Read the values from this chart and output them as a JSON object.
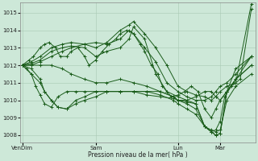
{
  "xlabel": "Pression niveau de la mer( hPa )",
  "yticks": [
    1008,
    1009,
    1010,
    1011,
    1012,
    1013,
    1014,
    1015
  ],
  "xtick_labels": [
    "VenDim",
    "Sam",
    "Lun",
    "Mar"
  ],
  "xtick_positions": [
    0.0,
    0.33,
    0.7,
    0.89
  ],
  "xmax": 1.05,
  "ymin": 1007.6,
  "ymax": 1015.6,
  "bg_color": "#cde8d8",
  "grid_color": "#a8c8b4",
  "line_color": "#1a5c1a",
  "lines": [
    {
      "x": [
        0.0,
        0.02,
        0.04,
        0.06,
        0.08,
        0.1,
        0.13,
        0.16,
        0.2,
        0.24,
        0.28,
        0.33,
        0.38,
        0.44,
        0.5,
        0.56,
        0.62,
        0.68,
        0.7,
        0.74,
        0.78,
        0.82,
        0.85,
        0.87,
        0.89,
        0.91,
        0.94,
        0.98,
        1.03
      ],
      "y": [
        1012.0,
        1011.8,
        1011.5,
        1010.8,
        1010.3,
        1009.8,
        1009.6,
        1010.2,
        1010.5,
        1010.5,
        1010.5,
        1010.5,
        1010.5,
        1010.5,
        1010.5,
        1010.3,
        1010.2,
        1010.1,
        1010.0,
        1009.9,
        1009.8,
        1008.5,
        1008.2,
        1008.3,
        1008.8,
        1010.2,
        1010.8,
        1011.2,
        1015.2
      ]
    },
    {
      "x": [
        0.0,
        0.04,
        0.08,
        0.13,
        0.18,
        0.22,
        0.28,
        0.33,
        0.38,
        0.44,
        0.48,
        0.5,
        0.55,
        0.6,
        0.65,
        0.7,
        0.74,
        0.78,
        0.82,
        0.85,
        0.87,
        0.89,
        0.92,
        0.96,
        1.03
      ],
      "y": [
        1012.0,
        1012.2,
        1012.5,
        1013.0,
        1013.2,
        1013.3,
        1013.2,
        1013.0,
        1013.3,
        1014.0,
        1014.3,
        1014.5,
        1013.8,
        1013.0,
        1012.0,
        1010.8,
        1010.5,
        1010.3,
        1010.2,
        1010.0,
        1010.2,
        1010.5,
        1010.8,
        1011.0,
        1015.5
      ]
    },
    {
      "x": [
        0.0,
        0.04,
        0.08,
        0.13,
        0.18,
        0.22,
        0.28,
        0.33,
        0.38,
        0.44,
        0.48,
        0.5,
        0.55,
        0.6,
        0.65,
        0.7,
        0.74,
        0.78,
        0.82,
        0.85,
        0.87,
        0.89,
        0.92,
        0.96,
        1.03
      ],
      "y": [
        1012.0,
        1012.1,
        1012.3,
        1012.8,
        1013.0,
        1013.1,
        1013.0,
        1012.5,
        1012.8,
        1013.0,
        1013.5,
        1014.2,
        1013.5,
        1011.5,
        1010.5,
        1010.2,
        1010.0,
        1009.8,
        1008.5,
        1008.2,
        1008.0,
        1008.1,
        1010.5,
        1011.8,
        1012.5
      ]
    },
    {
      "x": [
        0.0,
        0.04,
        0.08,
        0.1,
        0.13,
        0.16,
        0.2,
        0.24,
        0.28,
        0.33,
        0.38,
        0.44,
        0.5,
        0.56,
        0.62,
        0.68,
        0.7,
        0.74,
        0.78,
        0.82,
        0.85,
        0.87,
        0.89,
        0.92,
        0.96,
        1.03
      ],
      "y": [
        1012.0,
        1011.5,
        1011.0,
        1010.5,
        1010.0,
        1009.6,
        1009.5,
        1010.0,
        1010.2,
        1010.5,
        1010.5,
        1010.5,
        1010.5,
        1010.5,
        1010.5,
        1010.2,
        1010.0,
        1009.8,
        1009.5,
        1008.5,
        1008.2,
        1008.0,
        1008.1,
        1010.5,
        1011.2,
        1012.0
      ]
    },
    {
      "x": [
        0.0,
        0.04,
        0.08,
        0.13,
        0.18,
        0.22,
        0.28,
        0.33,
        0.38,
        0.44,
        0.48,
        0.5,
        0.55,
        0.6,
        0.65,
        0.7,
        0.74,
        0.78,
        0.82,
        0.85,
        0.87,
        0.89,
        0.92,
        0.96,
        1.03
      ],
      "y": [
        1012.0,
        1012.0,
        1012.2,
        1012.5,
        1012.8,
        1013.0,
        1013.2,
        1013.3,
        1013.2,
        1013.5,
        1014.0,
        1013.8,
        1013.0,
        1012.2,
        1011.0,
        1010.5,
        1010.2,
        1010.0,
        1010.0,
        1010.2,
        1010.5,
        1010.8,
        1011.0,
        1011.5,
        1012.5
      ]
    },
    {
      "x": [
        0.0,
        0.04,
        0.08,
        0.1,
        0.13,
        0.16,
        0.2,
        0.24,
        0.28,
        0.33,
        0.38,
        0.44,
        0.5,
        0.56,
        0.62,
        0.68,
        0.7,
        0.74,
        0.78,
        0.82,
        0.85,
        0.87,
        0.89,
        0.92,
        0.96,
        1.03
      ],
      "y": [
        1012.0,
        1011.8,
        1011.2,
        1010.5,
        1010.0,
        1009.6,
        1009.5,
        1009.8,
        1010.0,
        1010.2,
        1010.5,
        1010.5,
        1010.5,
        1010.5,
        1010.3,
        1010.0,
        1009.8,
        1009.5,
        1009.2,
        1008.5,
        1008.3,
        1008.2,
        1008.3,
        1010.0,
        1010.8,
        1011.5
      ]
    },
    {
      "x": [
        0.0,
        0.04,
        0.08,
        0.13,
        0.18,
        0.22,
        0.28,
        0.33,
        0.38,
        0.44,
        0.5,
        0.56,
        0.62,
        0.68,
        0.7,
        0.74,
        0.78,
        0.82,
        0.85,
        0.87,
        0.89,
        0.92,
        0.96,
        1.03
      ],
      "y": [
        1012.0,
        1012.0,
        1012.0,
        1012.0,
        1011.8,
        1011.5,
        1011.2,
        1011.0,
        1011.0,
        1011.2,
        1011.0,
        1010.8,
        1010.5,
        1010.2,
        1010.0,
        1010.0,
        1010.2,
        1010.5,
        1010.5,
        1010.2,
        1010.0,
        1010.5,
        1011.2,
        1012.0
      ]
    },
    {
      "x": [
        0.0,
        0.03,
        0.05,
        0.08,
        0.1,
        0.12,
        0.15,
        0.17,
        0.2,
        0.22,
        0.25,
        0.28,
        0.3,
        0.33,
        0.36,
        0.39,
        0.42,
        0.44,
        0.47,
        0.5,
        0.53,
        0.55,
        0.58,
        0.61,
        0.63,
        0.65,
        0.67,
        0.7,
        0.73,
        0.76,
        0.79,
        0.82,
        0.85,
        0.87,
        0.89,
        0.92,
        0.95,
        1.03
      ],
      "y": [
        1012.0,
        1012.3,
        1012.5,
        1013.0,
        1013.2,
        1013.3,
        1013.0,
        1012.5,
        1012.5,
        1012.8,
        1013.0,
        1012.5,
        1012.0,
        1012.3,
        1012.8,
        1013.2,
        1013.5,
        1013.8,
        1014.0,
        1013.8,
        1013.2,
        1012.8,
        1012.0,
        1011.5,
        1010.8,
        1010.5,
        1010.2,
        1010.3,
        1010.5,
        1010.8,
        1010.5,
        1009.5,
        1009.0,
        1009.5,
        1010.0,
        1010.5,
        1011.0,
        1012.5
      ]
    }
  ]
}
